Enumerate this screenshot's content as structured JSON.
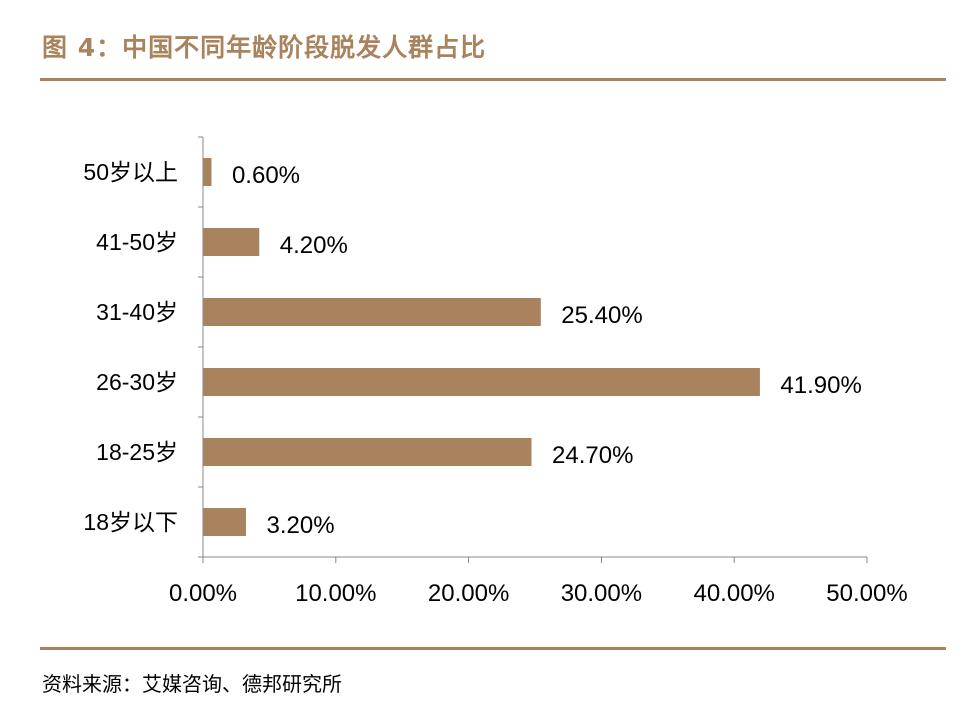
{
  "figure": {
    "title": "图 4：中国不同年龄阶段脱发人群占比",
    "source": "资料来源：艾媒咨询、德邦研究所"
  },
  "colors": {
    "accent": "#a9835d",
    "bar": "#a9835d",
    "axis": "#888888"
  },
  "chart_data": {
    "type": "bar",
    "orientation": "horizontal",
    "title": "",
    "xlabel": "",
    "ylabel": "",
    "categories": [
      "50岁以上",
      "41-50岁",
      "31-40岁",
      "26-30岁",
      "18-25岁",
      "18岁以下"
    ],
    "values": [
      0.6,
      4.2,
      25.4,
      41.9,
      24.7,
      3.2
    ],
    "data_labels": [
      "0.60%",
      "4.20%",
      "25.40%",
      "41.90%",
      "24.70%",
      "3.20%"
    ],
    "xlim": [
      0,
      50
    ],
    "xticks": [
      0,
      10,
      20,
      30,
      40,
      50
    ],
    "xtick_labels": [
      "0.00%",
      "10.00%",
      "20.00%",
      "30.00%",
      "40.00%",
      "50.00%"
    ],
    "grid": false,
    "legend": "none"
  }
}
